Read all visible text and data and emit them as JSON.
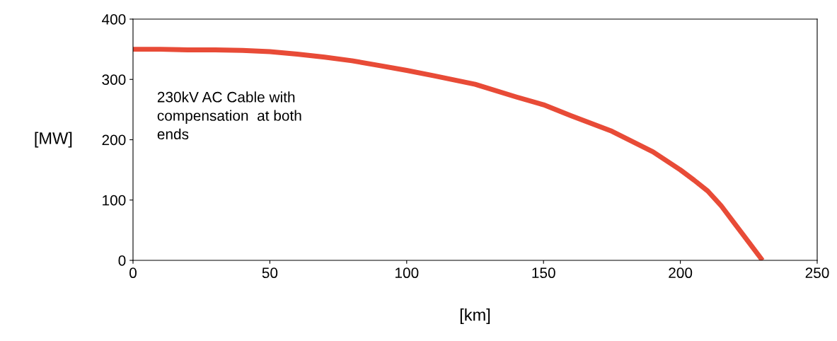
{
  "chart_data": {
    "type": "line",
    "xlabel": "[km]",
    "ylabel": "[MW]",
    "annotations": [
      "230kV AC Cable with\ncompensation  at both\nends"
    ],
    "x": [
      0,
      10,
      20,
      30,
      40,
      50,
      60,
      70,
      80,
      90,
      100,
      110,
      125,
      140,
      150,
      160,
      175,
      190,
      200,
      205,
      210,
      215,
      220,
      225,
      230
    ],
    "series": [
      {
        "color": "#e84b37",
        "values": [
          350,
          350,
          349,
          349,
          348,
          346,
          342,
          337,
          331,
          323,
          315,
          306,
          292,
          271,
          258,
          240,
          214,
          180,
          150,
          133,
          115,
          90,
          60,
          30,
          0
        ]
      }
    ],
    "xlim": [
      0,
      250
    ],
    "xticks": [
      0,
      50,
      100,
      150,
      200,
      250
    ],
    "ylim": [
      0,
      400
    ],
    "yticks": [
      0,
      100,
      200,
      300,
      400
    ],
    "grid": false,
    "legend": false,
    "marker": "none",
    "line_style": "solid"
  }
}
